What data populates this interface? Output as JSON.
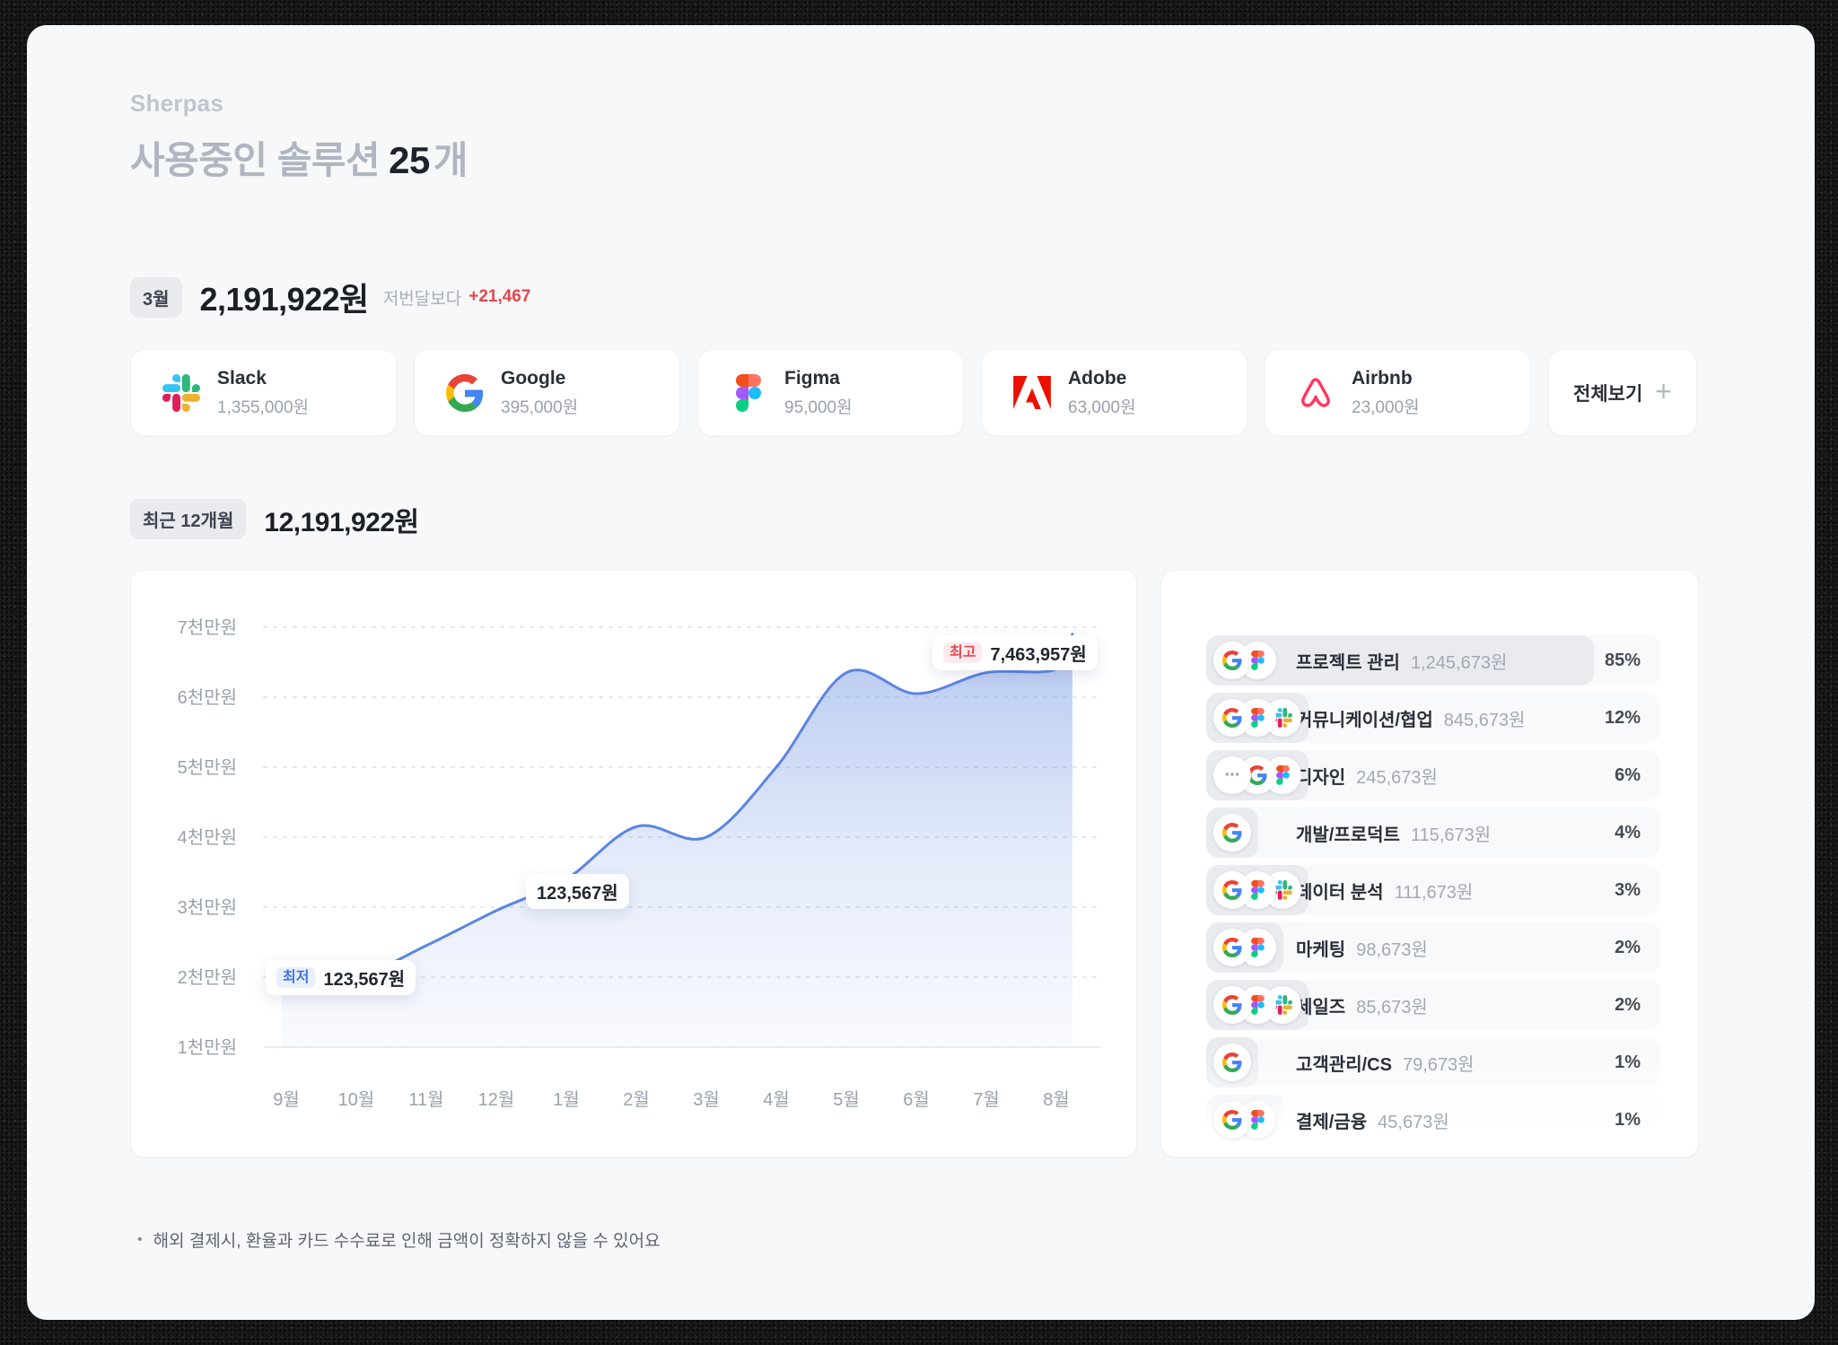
{
  "app": {
    "brand": "Sherpas",
    "title_prefix": "사용중인 솔루션",
    "title_count": "25",
    "title_suffix": "개"
  },
  "month_summary": {
    "badge": "3월",
    "amount": "2,191,922원",
    "compare_label": "저번달보다",
    "compare_delta": "+21,467"
  },
  "solution_cards": [
    {
      "name": "Slack",
      "amount": "1,355,000원",
      "icon": "slack"
    },
    {
      "name": "Google",
      "amount": "395,000원",
      "icon": "google"
    },
    {
      "name": "Figma",
      "amount": "95,000원",
      "icon": "figma"
    },
    {
      "name": "Adobe",
      "amount": "63,000원",
      "icon": "adobe"
    },
    {
      "name": "Airbnb",
      "amount": "23,000원",
      "icon": "airbnb"
    }
  ],
  "view_all": {
    "label": "전체보기",
    "icon": "plus-icon"
  },
  "period_summary": {
    "badge": "최근 12개월",
    "amount": "12,191,922원"
  },
  "chart_data": {
    "type": "area",
    "x": [
      "9월",
      "10월",
      "11월",
      "12월",
      "1월",
      "2월",
      "3월",
      "4월",
      "5월",
      "6월",
      "7월",
      "8월"
    ],
    "values_10m_won": [
      1.9,
      2.0,
      2.45,
      2.95,
      3.4,
      4.15,
      4.0,
      5.0,
      6.35,
      6.05,
      6.35,
      6.4
    ],
    "right_edge_value_10m_won": 6.9,
    "ylabels": [
      "7천만원",
      "6천만원",
      "5천만원",
      "4천만원",
      "3천만원",
      "2천만원",
      "1천만원"
    ],
    "ylim_10m_won": [
      1,
      7
    ],
    "grid": "dashed horizontal",
    "legend": "none",
    "line_color": "#5b84e4",
    "fill_color": "#6d92e3",
    "annotations": {
      "min": {
        "badge": "최저",
        "value": "123,567원",
        "position": "near 9월-10월, 2천만원 level"
      },
      "mid": {
        "value": "123,567원",
        "position": "below curve near 12월-1월"
      },
      "max": {
        "badge": "최고",
        "value": "7,463,957원",
        "position": "above curve near 7월"
      }
    }
  },
  "category_list": [
    {
      "label": "프로젝트 관리",
      "amount": "1,245,673원",
      "percent": "85%",
      "pct": 85,
      "icons": [
        "google",
        "figma"
      ]
    },
    {
      "label": "커뮤니케이션/협업",
      "amount": "845,673원",
      "percent": "12%",
      "pct": 12,
      "icons": [
        "google",
        "figma",
        "slack"
      ]
    },
    {
      "label": "디자인",
      "amount": "245,673원",
      "percent": "6%",
      "pct": 6,
      "icons": [
        "more",
        "google",
        "figma"
      ]
    },
    {
      "label": "개발/프로덕트",
      "amount": "115,673원",
      "percent": "4%",
      "pct": 4,
      "icons": [
        "google"
      ]
    },
    {
      "label": "데이터 분석",
      "amount": "111,673원",
      "percent": "3%",
      "pct": 3,
      "icons": [
        "google",
        "figma",
        "slack"
      ]
    },
    {
      "label": "마케팅",
      "amount": "98,673원",
      "percent": "2%",
      "pct": 2,
      "icons": [
        "google",
        "figma"
      ]
    },
    {
      "label": "세일즈",
      "amount": "85,673원",
      "percent": "2%",
      "pct": 2,
      "icons": [
        "google",
        "figma",
        "slack"
      ]
    },
    {
      "label": "고객관리/CS",
      "amount": "79,673원",
      "percent": "1%",
      "pct": 1,
      "icons": [
        "google"
      ]
    },
    {
      "label": "결제/금융",
      "amount": "45,673원",
      "percent": "1%",
      "pct": 1,
      "icons": [
        "google",
        "figma"
      ]
    }
  ],
  "footnote": "해외 결제시, 환율과 카드 수수료로 인해 금액이 정확하지 않을 수 있어요",
  "colors": {
    "page_bg": "#f7f8fa",
    "card_bg": "#ffffff",
    "accent_line": "#5b84e4",
    "delta_red": "#e4464e",
    "min_badge_blue": "#4273e2",
    "max_badge_red": "#e5484d",
    "muted_text": "#9aa1ac"
  }
}
